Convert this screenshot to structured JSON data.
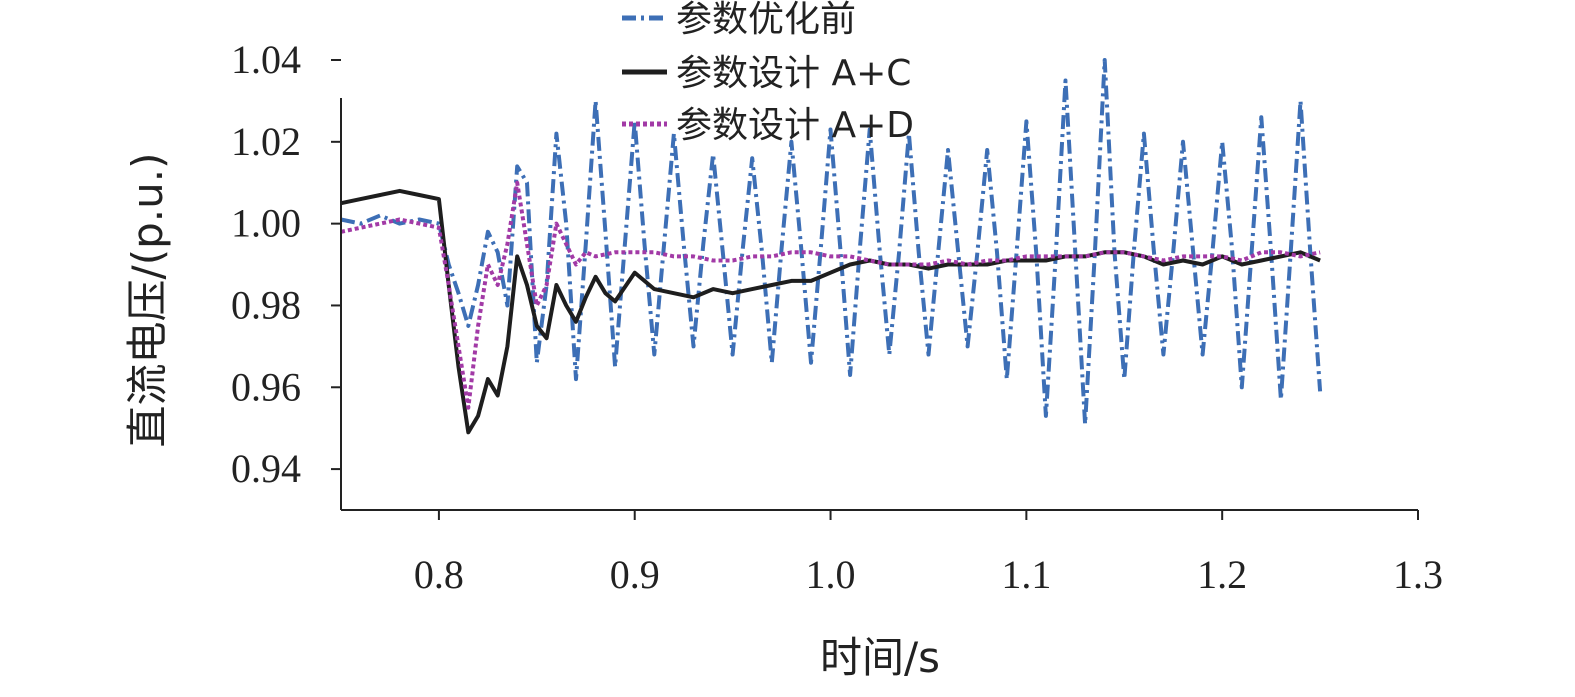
{
  "chart_data": {
    "type": "line",
    "title": "",
    "xlabel": "时间/s",
    "ylabel": "直流电压/(p.u.)",
    "xlim": [
      0.75,
      1.3
    ],
    "ylim": [
      0.93,
      1.04
    ],
    "x_ticks": [
      "0.8",
      "0.9",
      "1.0",
      "1.1",
      "1.2",
      "1.3"
    ],
    "x_tick_values": [
      0.8,
      0.9,
      1.0,
      1.1,
      1.2,
      1.3
    ],
    "y_ticks": [
      "0.94",
      "0.96",
      "0.98",
      "1.00",
      "1.02",
      "1.04"
    ],
    "y_tick_values": [
      0.94,
      0.96,
      0.98,
      1.0,
      1.02,
      1.04
    ],
    "grid": false,
    "legend_position": "top",
    "series": [
      {
        "name": "参数优化前",
        "color": "#3d6fb6",
        "style": "dashdot",
        "points": [
          [
            0.75,
            1.001
          ],
          [
            0.76,
            1.0
          ],
          [
            0.77,
            1.002
          ],
          [
            0.78,
            1.0
          ],
          [
            0.79,
            1.001
          ],
          [
            0.8,
            1.0
          ],
          [
            0.805,
            0.99
          ],
          [
            0.81,
            0.983
          ],
          [
            0.815,
            0.975
          ],
          [
            0.82,
            0.985
          ],
          [
            0.825,
            0.998
          ],
          [
            0.83,
            0.993
          ],
          [
            0.835,
            0.98
          ],
          [
            0.84,
            1.014
          ],
          [
            0.845,
            1.01
          ],
          [
            0.85,
            0.966
          ],
          [
            0.855,
            0.985
          ],
          [
            0.86,
            1.022
          ],
          [
            0.865,
            1.0
          ],
          [
            0.87,
            0.962
          ],
          [
            0.875,
            0.995
          ],
          [
            0.88,
            1.03
          ],
          [
            0.885,
            0.998
          ],
          [
            0.89,
            0.965
          ],
          [
            0.895,
            0.995
          ],
          [
            0.9,
            1.025
          ],
          [
            0.905,
            0.995
          ],
          [
            0.91,
            0.968
          ],
          [
            0.915,
            0.995
          ],
          [
            0.92,
            1.022
          ],
          [
            0.925,
            0.995
          ],
          [
            0.93,
            0.97
          ],
          [
            0.935,
            0.995
          ],
          [
            0.94,
            1.017
          ],
          [
            0.945,
            0.993
          ],
          [
            0.95,
            0.968
          ],
          [
            0.955,
            0.993
          ],
          [
            0.96,
            1.016
          ],
          [
            0.965,
            0.993
          ],
          [
            0.97,
            0.966
          ],
          [
            0.975,
            0.994
          ],
          [
            0.98,
            1.02
          ],
          [
            0.985,
            0.994
          ],
          [
            0.99,
            0.966
          ],
          [
            0.995,
            0.994
          ],
          [
            1.0,
            1.023
          ],
          [
            1.005,
            0.994
          ],
          [
            1.01,
            0.963
          ],
          [
            1.015,
            0.994
          ],
          [
            1.02,
            1.023
          ],
          [
            1.025,
            0.994
          ],
          [
            1.03,
            0.968
          ],
          [
            1.035,
            0.993
          ],
          [
            1.04,
            1.022
          ],
          [
            1.045,
            0.993
          ],
          [
            1.05,
            0.968
          ],
          [
            1.055,
            0.993
          ],
          [
            1.06,
            1.018
          ],
          [
            1.065,
            0.994
          ],
          [
            1.07,
            0.97
          ],
          [
            1.075,
            0.993
          ],
          [
            1.08,
            1.018
          ],
          [
            1.085,
            0.993
          ],
          [
            1.09,
            0.962
          ],
          [
            1.095,
            0.993
          ],
          [
            1.1,
            1.025
          ],
          [
            1.105,
            0.993
          ],
          [
            1.11,
            0.953
          ],
          [
            1.115,
            0.992
          ],
          [
            1.12,
            1.035
          ],
          [
            1.125,
            0.993
          ],
          [
            1.13,
            0.951
          ],
          [
            1.135,
            0.993
          ],
          [
            1.14,
            1.04
          ],
          [
            1.145,
            0.993
          ],
          [
            1.15,
            0.962
          ],
          [
            1.155,
            0.994
          ],
          [
            1.16,
            1.022
          ],
          [
            1.165,
            0.994
          ],
          [
            1.17,
            0.968
          ],
          [
            1.175,
            0.993
          ],
          [
            1.18,
            1.02
          ],
          [
            1.185,
            0.994
          ],
          [
            1.19,
            0.968
          ],
          [
            1.195,
            0.993
          ],
          [
            1.2,
            1.02
          ],
          [
            1.205,
            0.994
          ],
          [
            1.21,
            0.96
          ],
          [
            1.215,
            0.993
          ],
          [
            1.22,
            1.026
          ],
          [
            1.225,
            0.993
          ],
          [
            1.23,
            0.957
          ],
          [
            1.235,
            0.993
          ],
          [
            1.24,
            1.03
          ],
          [
            1.245,
            0.993
          ],
          [
            1.25,
            0.959
          ]
        ]
      },
      {
        "name": "参数设计 A+C",
        "color": "#1e1e1e",
        "style": "solid",
        "points": [
          [
            0.75,
            1.005
          ],
          [
            0.76,
            1.006
          ],
          [
            0.77,
            1.007
          ],
          [
            0.78,
            1.008
          ],
          [
            0.79,
            1.007
          ],
          [
            0.8,
            1.006
          ],
          [
            0.805,
            0.985
          ],
          [
            0.81,
            0.965
          ],
          [
            0.815,
            0.949
          ],
          [
            0.82,
            0.953
          ],
          [
            0.825,
            0.962
          ],
          [
            0.83,
            0.958
          ],
          [
            0.835,
            0.97
          ],
          [
            0.84,
            0.992
          ],
          [
            0.845,
            0.985
          ],
          [
            0.85,
            0.975
          ],
          [
            0.855,
            0.972
          ],
          [
            0.86,
            0.985
          ],
          [
            0.865,
            0.98
          ],
          [
            0.87,
            0.976
          ],
          [
            0.875,
            0.982
          ],
          [
            0.88,
            0.987
          ],
          [
            0.885,
            0.983
          ],
          [
            0.89,
            0.981
          ],
          [
            0.9,
            0.988
          ],
          [
            0.91,
            0.984
          ],
          [
            0.92,
            0.983
          ],
          [
            0.93,
            0.982
          ],
          [
            0.94,
            0.984
          ],
          [
            0.95,
            0.983
          ],
          [
            0.96,
            0.984
          ],
          [
            0.97,
            0.985
          ],
          [
            0.98,
            0.986
          ],
          [
            0.99,
            0.986
          ],
          [
            1.0,
            0.988
          ],
          [
            1.01,
            0.99
          ],
          [
            1.02,
            0.991
          ],
          [
            1.03,
            0.99
          ],
          [
            1.04,
            0.99
          ],
          [
            1.05,
            0.989
          ],
          [
            1.06,
            0.99
          ],
          [
            1.07,
            0.99
          ],
          [
            1.08,
            0.99
          ],
          [
            1.09,
            0.991
          ],
          [
            1.1,
            0.991
          ],
          [
            1.11,
            0.991
          ],
          [
            1.12,
            0.992
          ],
          [
            1.13,
            0.992
          ],
          [
            1.14,
            0.993
          ],
          [
            1.15,
            0.993
          ],
          [
            1.16,
            0.992
          ],
          [
            1.17,
            0.99
          ],
          [
            1.18,
            0.991
          ],
          [
            1.19,
            0.99
          ],
          [
            1.2,
            0.992
          ],
          [
            1.21,
            0.99
          ],
          [
            1.22,
            0.991
          ],
          [
            1.23,
            0.992
          ],
          [
            1.24,
            0.993
          ],
          [
            1.25,
            0.991
          ]
        ]
      },
      {
        "name": "参数设计 A+D",
        "color": "#a23aa6",
        "style": "dotted",
        "points": [
          [
            0.75,
            0.998
          ],
          [
            0.76,
            0.999
          ],
          [
            0.77,
            1.0
          ],
          [
            0.78,
            1.001
          ],
          [
            0.79,
            1.0
          ],
          [
            0.8,
            0.999
          ],
          [
            0.805,
            0.985
          ],
          [
            0.81,
            0.97
          ],
          [
            0.815,
            0.955
          ],
          [
            0.82,
            0.975
          ],
          [
            0.825,
            0.99
          ],
          [
            0.83,
            0.985
          ],
          [
            0.835,
            0.995
          ],
          [
            0.84,
            1.01
          ],
          [
            0.845,
            0.995
          ],
          [
            0.85,
            0.98
          ],
          [
            0.855,
            0.985
          ],
          [
            0.86,
            1.0
          ],
          [
            0.865,
            0.995
          ],
          [
            0.87,
            0.99
          ],
          [
            0.875,
            0.993
          ],
          [
            0.88,
            0.992
          ],
          [
            0.89,
            0.993
          ],
          [
            0.9,
            0.993
          ],
          [
            0.91,
            0.993
          ],
          [
            0.92,
            0.992
          ],
          [
            0.93,
            0.992
          ],
          [
            0.94,
            0.991
          ],
          [
            0.95,
            0.991
          ],
          [
            0.96,
            0.992
          ],
          [
            0.97,
            0.992
          ],
          [
            0.98,
            0.993
          ],
          [
            0.99,
            0.993
          ],
          [
            1.0,
            0.992
          ],
          [
            1.01,
            0.992
          ],
          [
            1.02,
            0.991
          ],
          [
            1.03,
            0.99
          ],
          [
            1.04,
            0.99
          ],
          [
            1.05,
            0.99
          ],
          [
            1.06,
            0.991
          ],
          [
            1.07,
            0.99
          ],
          [
            1.08,
            0.991
          ],
          [
            1.09,
            0.991
          ],
          [
            1.1,
            0.992
          ],
          [
            1.11,
            0.992
          ],
          [
            1.12,
            0.992
          ],
          [
            1.13,
            0.992
          ],
          [
            1.14,
            0.993
          ],
          [
            1.15,
            0.993
          ],
          [
            1.16,
            0.992
          ],
          [
            1.17,
            0.991
          ],
          [
            1.18,
            0.992
          ],
          [
            1.19,
            0.992
          ],
          [
            1.2,
            0.992
          ],
          [
            1.21,
            0.991
          ],
          [
            1.22,
            0.993
          ],
          [
            1.23,
            0.993
          ],
          [
            1.24,
            0.992
          ],
          [
            1.25,
            0.993
          ]
        ]
      }
    ]
  }
}
